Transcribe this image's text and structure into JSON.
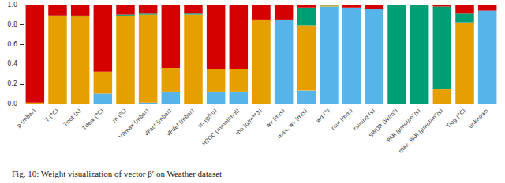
{
  "chart_data": {
    "type": "bar",
    "title": "Fig. 10: Weight visualization of vector β′ on Weather dataset",
    "stacked": true,
    "grid": false,
    "categories": [
      "p (mbar)",
      "T (°C)",
      "Tpot (K)",
      "Tdew (°C)",
      "rh (%)",
      "VPmax (mbar)",
      "VPact (mbar)",
      "VPdef (mbar)",
      "sh (g/kg)",
      "H2OC (mmol/mol)",
      "rho (g/m**3)",
      "wv (m/s)",
      "max. wv (m/s)",
      "wd (°)",
      "rain (mm)",
      "raining (s)",
      "SWDR (W/m²)",
      "PAR (µmol/m²/s)",
      "max. PAR (µmol/m²/s)",
      "Tlog (°C)",
      "unknown"
    ],
    "series": [
      {
        "color": "#56B4E9",
        "values": [
          0,
          0,
          0,
          0.1,
          0,
          0.01,
          0.12,
          0,
          0.12,
          0.12,
          0,
          0.85,
          0.13,
          0.98,
          0.97,
          0.96,
          0,
          0,
          0,
          0,
          0.94
        ]
      },
      {
        "color": "#E69F00",
        "values": [
          0.01,
          0.88,
          0.88,
          0.22,
          0.89,
          0.89,
          0.24,
          0.9,
          0.23,
          0.23,
          0.85,
          0,
          0.66,
          0.01,
          0,
          0,
          0,
          0,
          0.15,
          0.82,
          0
        ]
      },
      {
        "color": "#009E73",
        "values": [
          0,
          0.01,
          0.01,
          0,
          0.01,
          0.01,
          0,
          0.01,
          0,
          0,
          0,
          0,
          0.18,
          0.01,
          0,
          0,
          1.0,
          1.0,
          0.83,
          0.09,
          0
        ]
      },
      {
        "color": "#D50000",
        "values": [
          0.99,
          0.11,
          0.11,
          0.68,
          0.1,
          0.09,
          0.64,
          0.09,
          0.65,
          0.65,
          0.15,
          0.15,
          0.03,
          0,
          0.03,
          0.04,
          0,
          0,
          0.02,
          0.09,
          0.06
        ]
      }
    ],
    "ylim": [
      0,
      1
    ],
    "yticks": [
      {
        "value": 0,
        "label": "0.0"
      },
      {
        "value": 0.2,
        "label": "0.2"
      },
      {
        "value": 0.4,
        "label": "0.4"
      },
      {
        "value": 0.6,
        "label": "0.6"
      },
      {
        "value": 0.8,
        "label": "0.8"
      },
      {
        "value": 1,
        "label": "1.0"
      }
    ]
  }
}
